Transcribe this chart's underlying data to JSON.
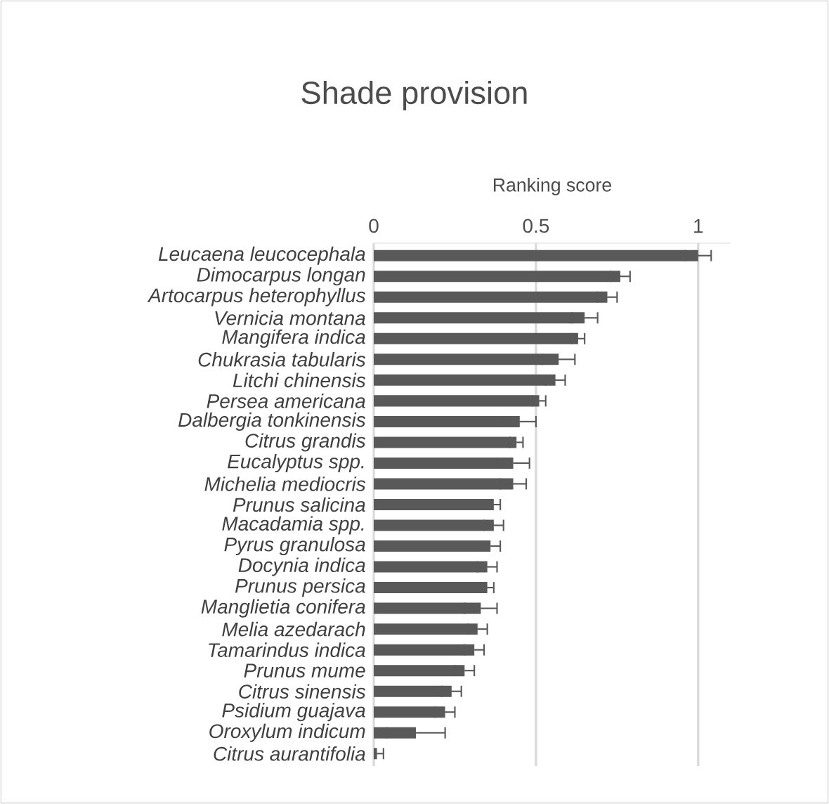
{
  "chart_data": {
    "type": "bar",
    "orientation": "horizontal",
    "title": "Shade provision",
    "xlabel": "Ranking score",
    "categories": [
      "Leucaena leucocephala",
      "Dimocarpus longan",
      "Artocarpus heterophyllus",
      "Vernicia montana",
      "Mangifera indica",
      "Chukrasia tabularis",
      "Litchi chinensis",
      "Persea americana",
      "Dalbergia tonkinensis",
      "Citrus grandis",
      "Eucalyptus spp.",
      "Michelia mediocris",
      "Prunus salicina",
      "Macadamia spp.",
      "Pyrus granulosa",
      "Docynia indica",
      "Prunus persica",
      "Manglietia conifera",
      "Melia azedarach",
      "Tamarindus indica",
      "Prunus mume",
      "Citrus sinensis",
      "Psidium guajava",
      "Oroxylum indicum",
      "Citrus aurantifolia"
    ],
    "values": [
      1.0,
      0.76,
      0.72,
      0.65,
      0.63,
      0.57,
      0.56,
      0.51,
      0.45,
      0.44,
      0.43,
      0.43,
      0.37,
      0.37,
      0.36,
      0.35,
      0.35,
      0.33,
      0.32,
      0.31,
      0.28,
      0.24,
      0.22,
      0.13,
      0.01
    ],
    "errors": [
      0.04,
      0.03,
      0.03,
      0.04,
      0.02,
      0.05,
      0.03,
      0.02,
      0.05,
      0.02,
      0.05,
      0.04,
      0.02,
      0.03,
      0.03,
      0.03,
      0.02,
      0.05,
      0.03,
      0.03,
      0.03,
      0.03,
      0.03,
      0.09,
      0.02
    ],
    "color": "#595959",
    "xlim": [
      0,
      1.1
    ],
    "xticks": [
      0,
      0.5,
      1
    ],
    "grid": "x"
  }
}
